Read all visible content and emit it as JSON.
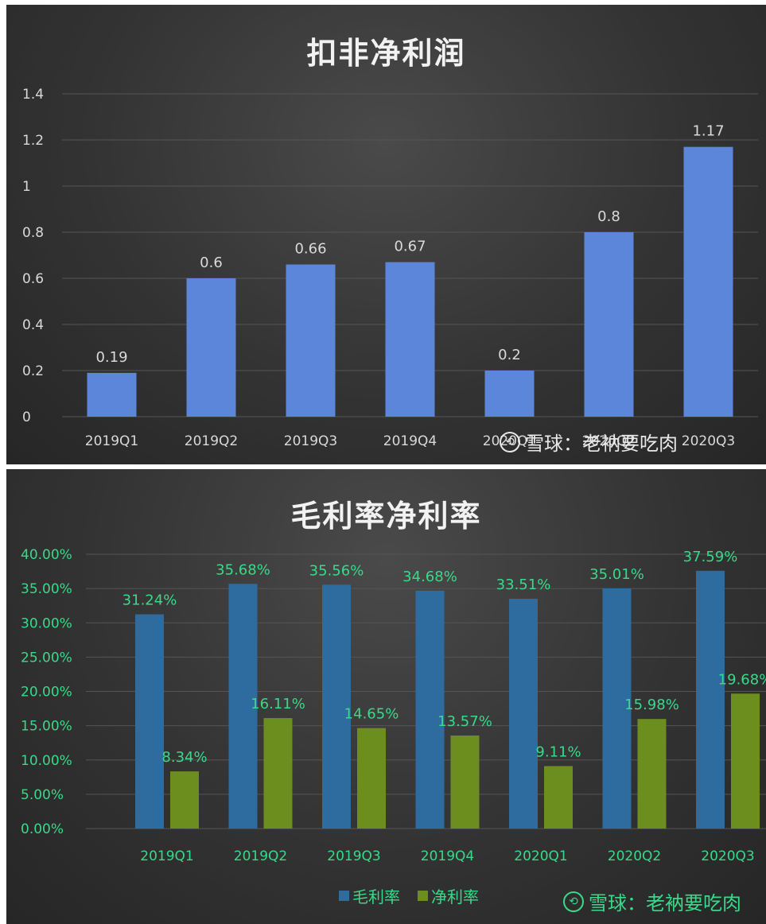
{
  "chart_data": [
    {
      "type": "bar",
      "title": "扣非净利润",
      "categories": [
        "2019Q1",
        "2019Q2",
        "2019Q3",
        "2019Q4",
        "2020Q1",
        "2020Q2",
        "2020Q3"
      ],
      "values": [
        0.19,
        0.6,
        0.66,
        0.67,
        0.2,
        0.8,
        1.17
      ],
      "data_labels": [
        "0.19",
        "0.6",
        "0.66",
        "0.67",
        "0.2",
        "0.8",
        "1.17"
      ],
      "ylim": [
        0,
        1.4
      ],
      "yticks": [
        0,
        0.2,
        0.4,
        0.6,
        0.8,
        1,
        1.2,
        1.4
      ],
      "ytick_labels": [
        "0",
        "0.2",
        "0.4",
        "0.6",
        "0.8",
        "1",
        "1.2",
        "1.4"
      ],
      "grid": true,
      "bar_color": "#5b86d9",
      "label_color": "#d9d9d9"
    },
    {
      "type": "bar",
      "title": "毛利率净利率",
      "categories": [
        "2019Q1",
        "2019Q2",
        "2019Q3",
        "2019Q4",
        "2020Q1",
        "2020Q2",
        "2020Q3"
      ],
      "series": [
        {
          "name": "毛利率",
          "values": [
            31.24,
            35.68,
            35.56,
            34.68,
            33.51,
            35.01,
            37.59
          ],
          "data_labels": [
            "31.24%",
            "35.68%",
            "35.56%",
            "34.68%",
            "33.51%",
            "35.01%",
            "37.59%"
          ],
          "color": "#2e6b9e"
        },
        {
          "name": "净利率",
          "values": [
            8.34,
            16.11,
            14.65,
            13.57,
            9.11,
            15.98,
            19.68
          ],
          "data_labels": [
            "8.34%",
            "16.11%",
            "14.65%",
            "13.57%",
            "9.11%",
            "15.98%",
            "19.68%"
          ],
          "color": "#6b8e1f"
        }
      ],
      "ylim": [
        0,
        40
      ],
      "yticks": [
        0,
        5,
        10,
        15,
        20,
        25,
        30,
        35,
        40
      ],
      "ytick_labels": [
        "0.00%",
        "5.00%",
        "10.00%",
        "15.00%",
        "20.00%",
        "25.00%",
        "30.00%",
        "35.00%",
        "40.00%"
      ],
      "grid": true,
      "legend": "bottom",
      "label_color": "#39d98a"
    }
  ],
  "watermark": {
    "logo": "snowball-logo-icon",
    "text": "雪球：老衲要吃肉"
  },
  "colors": {
    "panel_bg": "#333333",
    "axis_text": "#d9d9d9",
    "green_text": "#39d98a",
    "grid": "#555555"
  }
}
